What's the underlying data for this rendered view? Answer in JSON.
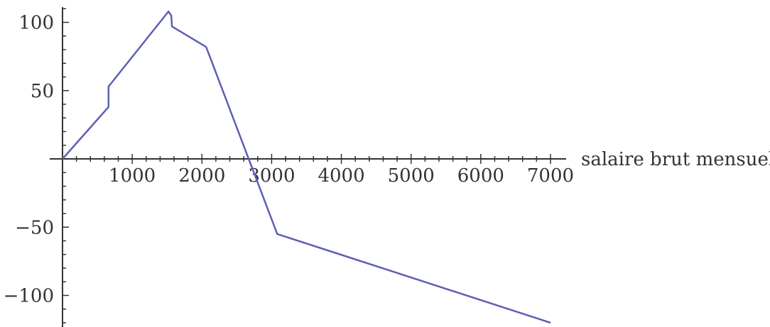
{
  "chart_data": {
    "type": "line",
    "title": "",
    "xlabel": "salaire brut mensuel",
    "ylabel": "",
    "xlim": [
      0,
      7000
    ],
    "ylim": [
      -122,
      112
    ],
    "xticks": [
      1000,
      2000,
      3000,
      4000,
      5000,
      6000,
      7000
    ],
    "xtick_labels": [
      "1000",
      "2000",
      "3000",
      "4000",
      "5000",
      "6000",
      "7000"
    ],
    "yticks": [
      100,
      50,
      -50,
      -100
    ],
    "ytick_labels": [
      "100",
      "50",
      "−50",
      "−100"
    ],
    "grid": false,
    "series": [
      {
        "color": "#5d5fb3",
        "points": [
          [
            0,
            0
          ],
          [
            660,
            38
          ],
          [
            660,
            53
          ],
          [
            1520,
            108
          ],
          [
            1560,
            105
          ],
          [
            1570,
            97
          ],
          [
            2060,
            82
          ],
          [
            3080,
            -55
          ],
          [
            7000,
            -120
          ]
        ]
      }
    ]
  }
}
